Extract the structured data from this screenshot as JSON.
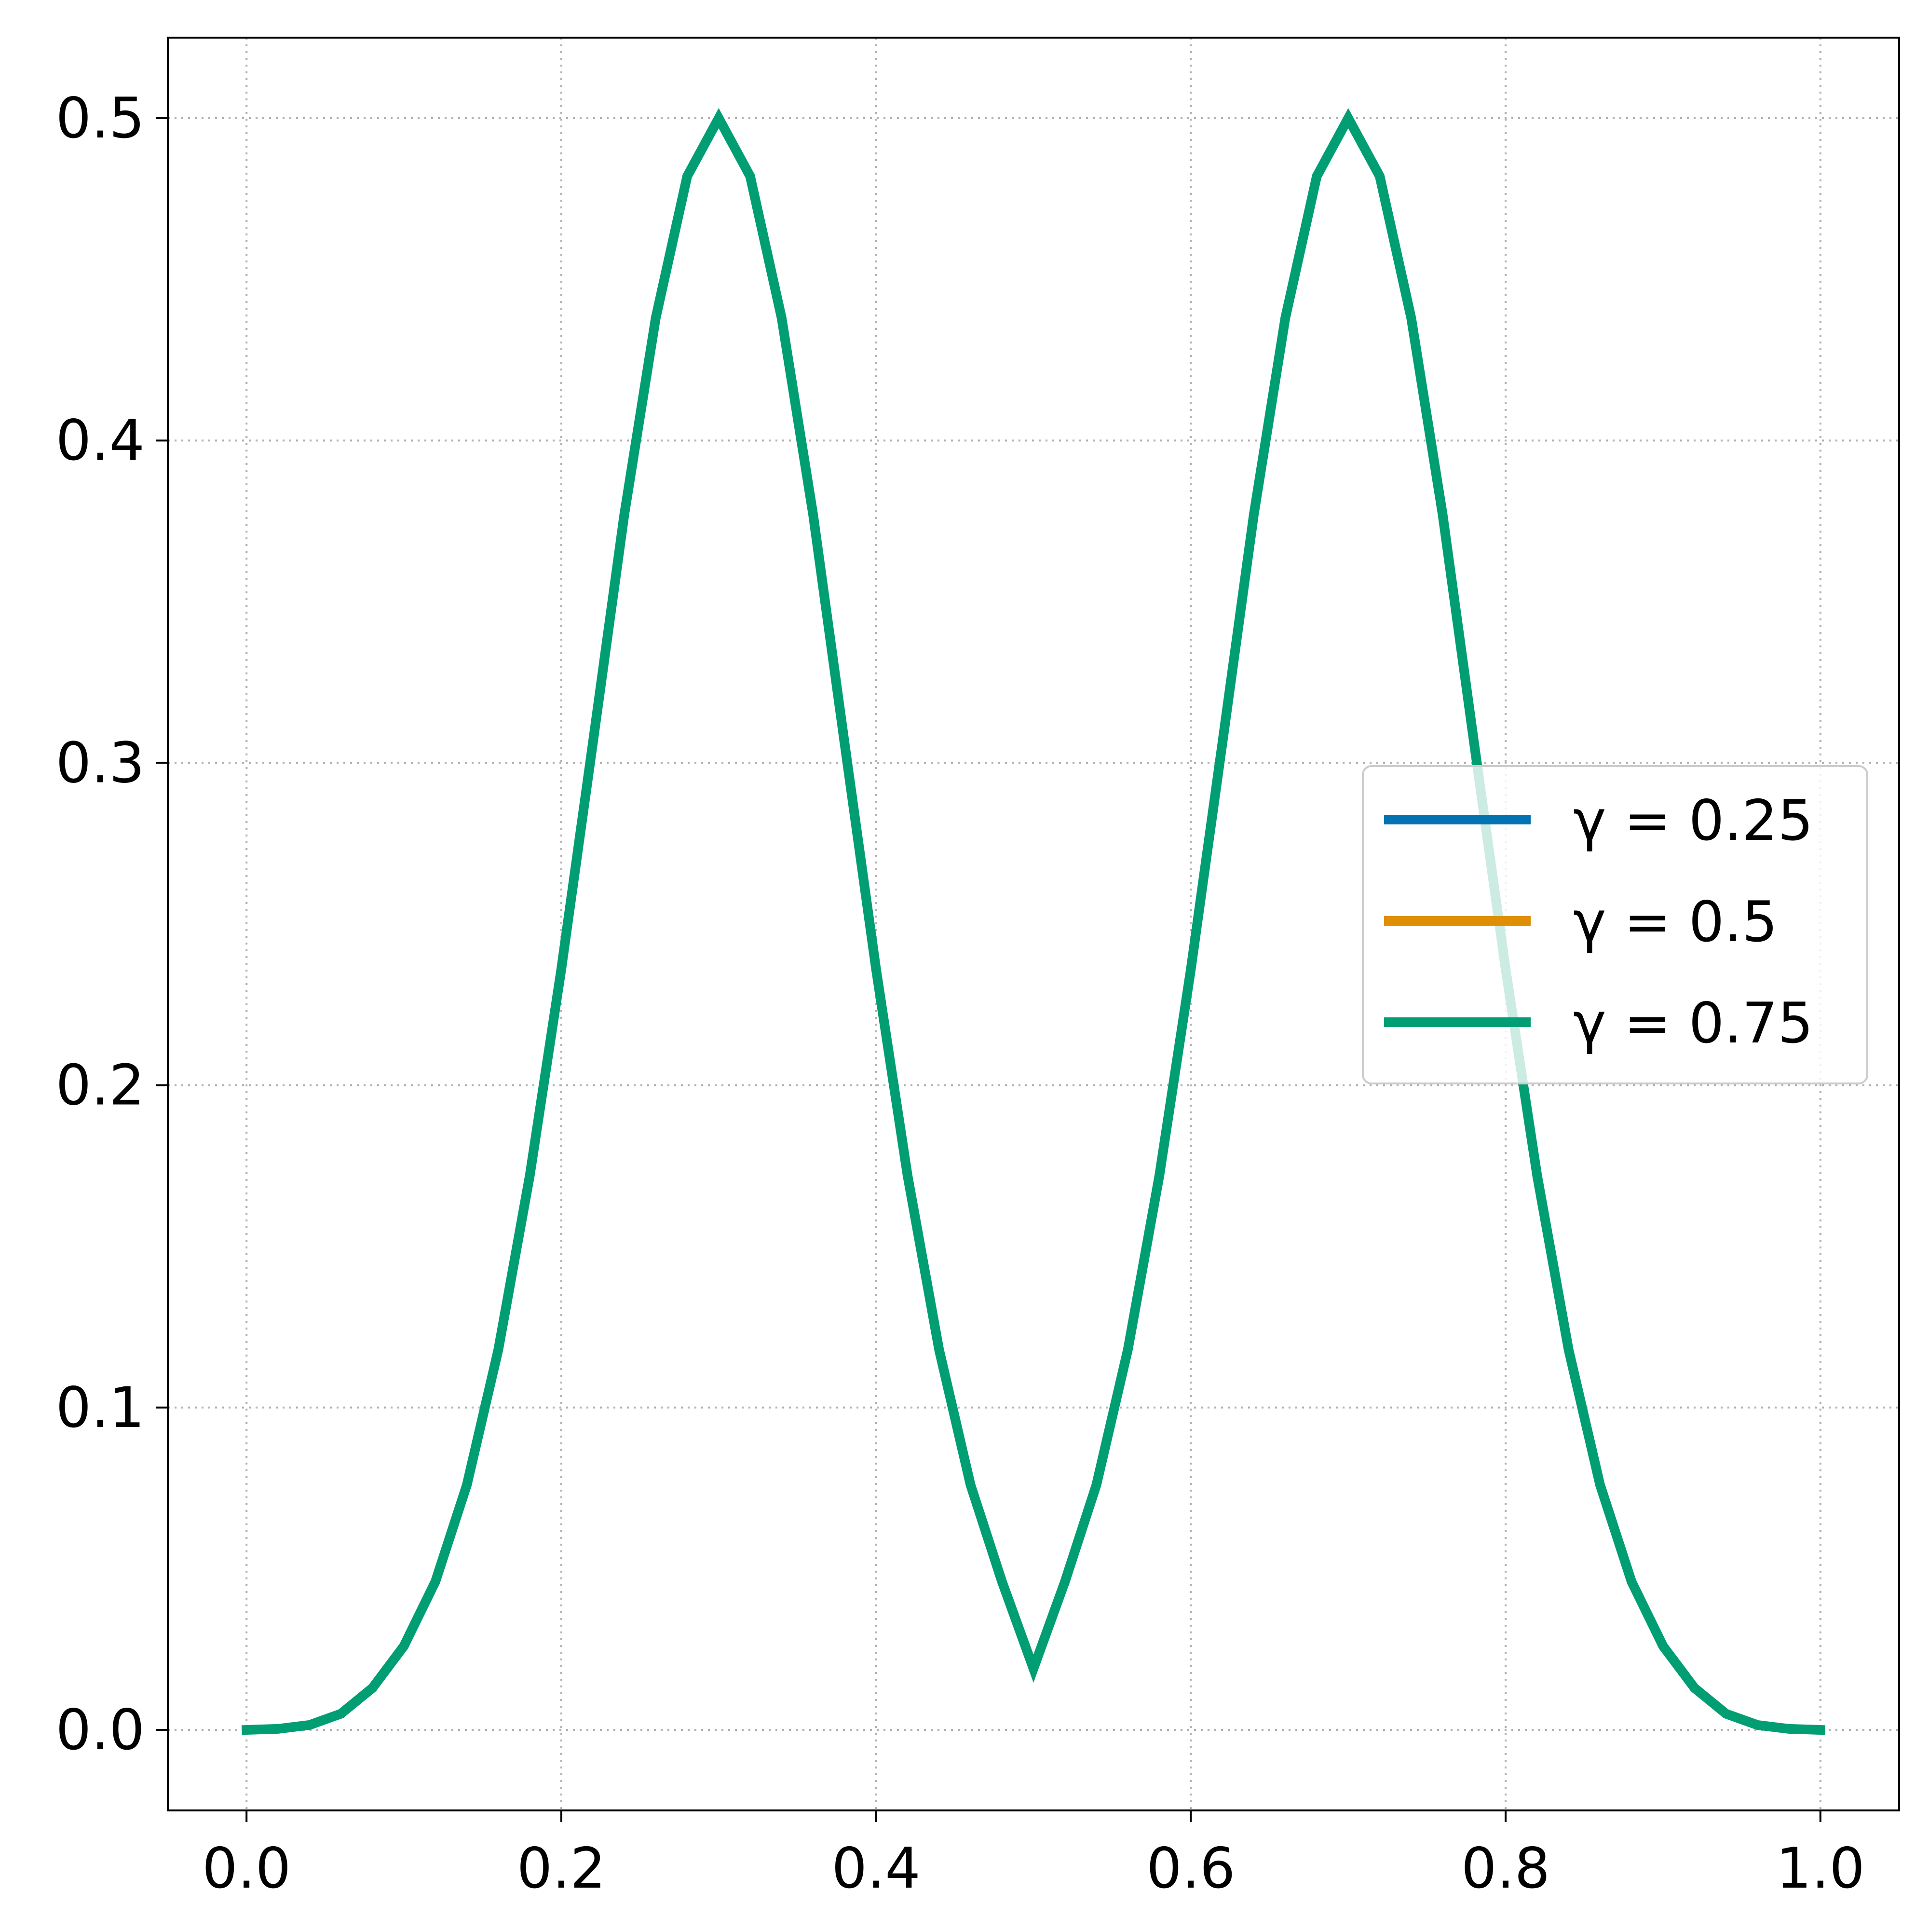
{
  "chart_data": {
    "type": "line",
    "title": "",
    "xlabel": "",
    "ylabel": "",
    "xlim": [
      -0.05,
      1.05
    ],
    "ylim": [
      -0.025,
      0.525
    ],
    "x_ticks": [
      0.0,
      0.2,
      0.4,
      0.6,
      0.8,
      1.0
    ],
    "x_tick_labels": [
      "0.0",
      "0.2",
      "0.4",
      "0.6",
      "0.8",
      "1.0"
    ],
    "y_ticks": [
      0.0,
      0.1,
      0.2,
      0.3,
      0.4,
      0.5
    ],
    "y_tick_labels": [
      "0.0",
      "0.1",
      "0.2",
      "0.3",
      "0.4",
      "0.5"
    ],
    "grid": true,
    "grid_style": "dotted",
    "legend_position": "center-right",
    "series": [
      {
        "name": "γ = 0.25",
        "color": "#0173b2",
        "x": [],
        "y": []
      },
      {
        "name": "γ = 0.5",
        "color": "#de8f05",
        "x": [],
        "y": []
      },
      {
        "name": "γ = 0.75",
        "color": "#029e73",
        "x": [
          0.0,
          0.02,
          0.04,
          0.06,
          0.08,
          0.1,
          0.12,
          0.14,
          0.16,
          0.18,
          0.2,
          0.22,
          0.24,
          0.26,
          0.28,
          0.3,
          0.32,
          0.34,
          0.36,
          0.38,
          0.4,
          0.42,
          0.44,
          0.46,
          0.48,
          0.5,
          0.52,
          0.54,
          0.56,
          0.58,
          0.6,
          0.62,
          0.64,
          0.66,
          0.68,
          0.7,
          0.72,
          0.74,
          0.76,
          0.78,
          0.8,
          0.82,
          0.84,
          0.86,
          0.88,
          0.9,
          0.92,
          0.94,
          0.96,
          0.98,
          1.0
        ],
        "y": [
          0.0,
          0.0003,
          0.0015,
          0.005,
          0.013,
          0.026,
          0.046,
          0.076,
          0.118,
          0.172,
          0.236,
          0.306,
          0.377,
          0.438,
          0.482,
          0.5,
          0.482,
          0.438,
          0.377,
          0.306,
          0.236,
          0.172,
          0.118,
          0.076,
          0.046,
          0.019,
          0.046,
          0.076,
          0.118,
          0.172,
          0.236,
          0.306,
          0.377,
          0.438,
          0.482,
          0.5,
          0.482,
          0.438,
          0.377,
          0.306,
          0.236,
          0.172,
          0.118,
          0.076,
          0.046,
          0.026,
          0.013,
          0.005,
          0.0015,
          0.0003,
          0.0
        ]
      }
    ]
  }
}
